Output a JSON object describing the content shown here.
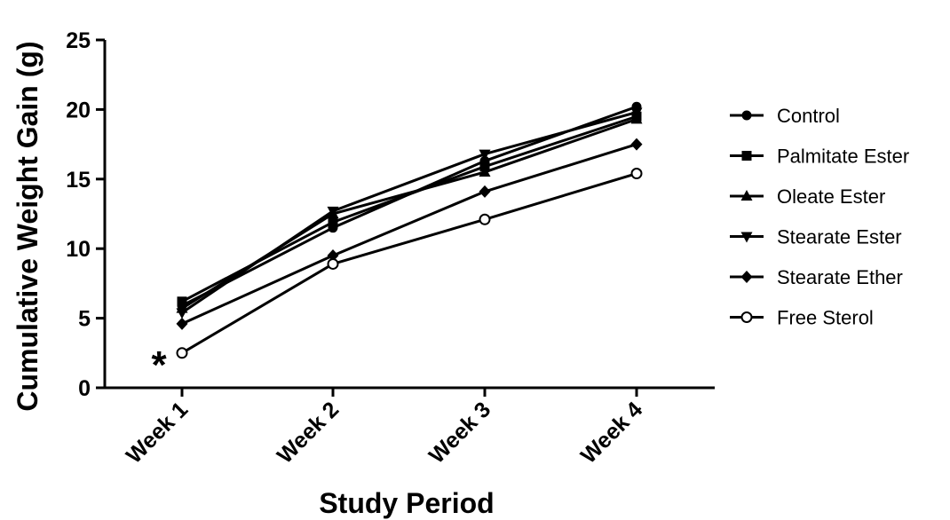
{
  "chart_data": {
    "type": "line",
    "title": "",
    "xlabel": "Study Period",
    "ylabel": "Cumulative  Weight Gain (g)",
    "categories": [
      "Week 1",
      "Week 2",
      "Week 3",
      "Week 4"
    ],
    "ylim": [
      0,
      25
    ],
    "yticks": [
      "0",
      "5",
      "10",
      "15",
      "20",
      "25"
    ],
    "grid": false,
    "legend_position": "right",
    "series": [
      {
        "name": "Control",
        "marker": "circle-filled",
        "values": [
          5.9,
          11.5,
          16.3,
          20.2
        ]
      },
      {
        "name": "Palmitate Ester",
        "marker": "square-filled",
        "values": [
          6.2,
          11.9,
          15.9,
          19.5
        ]
      },
      {
        "name": "Oleate Ester",
        "marker": "triangle-up",
        "values": [
          5.7,
          12.5,
          15.5,
          19.3
        ]
      },
      {
        "name": "Stearate Ester",
        "marker": "triangle-down",
        "values": [
          5.4,
          12.7,
          16.8,
          19.8
        ]
      },
      {
        "name": "Stearate Ether",
        "marker": "diamond-filled",
        "values": [
          4.6,
          9.5,
          14.1,
          17.5
        ]
      },
      {
        "name": "Free Sterol",
        "marker": "circle-open",
        "values": [
          2.5,
          8.9,
          12.1,
          15.4
        ]
      }
    ],
    "annotations": [
      {
        "text": "*",
        "category": "Week 1",
        "series": "Free Sterol"
      }
    ],
    "colors": {
      "line": "#000000",
      "background": "#ffffff"
    }
  }
}
